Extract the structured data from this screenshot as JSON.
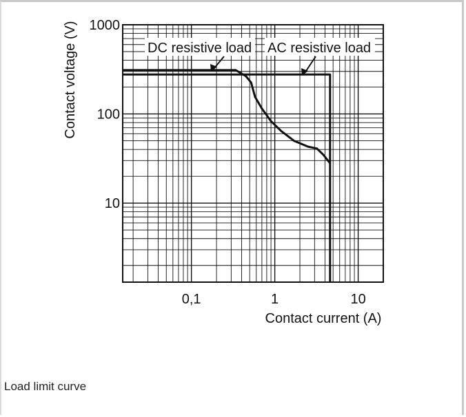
{
  "caption": "Load limit curve",
  "chart_data": {
    "type": "line",
    "title": "",
    "xlabel": "Contact current (A)",
    "ylabel": "Contact voltage (V)",
    "xscale": "log",
    "yscale": "log",
    "xlim": [
      0.015,
      20
    ],
    "ylim": [
      1.3,
      1000
    ],
    "x_tick_labels": [
      {
        "value": 0.1,
        "label": "0,1"
      },
      {
        "value": 1,
        "label": "1"
      },
      {
        "value": 10,
        "label": "10"
      }
    ],
    "y_tick_labels": [
      {
        "value": 10,
        "label": "10"
      },
      {
        "value": 100,
        "label": "100"
      },
      {
        "value": 1000,
        "label": "1000"
      }
    ],
    "grid": true,
    "series": [
      {
        "name": "DC resistive load",
        "points": [
          [
            0.015,
            310
          ],
          [
            0.34,
            310
          ],
          [
            0.45,
            265
          ],
          [
            0.52,
            225
          ],
          [
            0.58,
            155
          ],
          [
            0.7,
            115
          ],
          [
            0.9,
            83
          ],
          [
            1.2,
            64
          ],
          [
            1.7,
            50
          ],
          [
            2.5,
            43
          ],
          [
            3.2,
            41
          ],
          [
            3.8,
            35
          ],
          [
            4.6,
            28
          ]
        ]
      },
      {
        "name": "AC resistive load",
        "points": [
          [
            0.015,
            277
          ],
          [
            4.6,
            277
          ],
          [
            4.6,
            1.3
          ]
        ]
      }
    ]
  }
}
